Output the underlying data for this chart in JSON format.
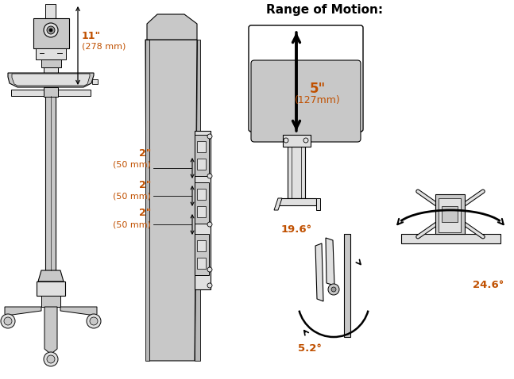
{
  "title": "Range of Motion:",
  "bg_color": "#ffffff",
  "gray_fill": "#c8c8c8",
  "gray_dark": "#999999",
  "gray_light": "#e0e0e0",
  "gray_med": "#b8b8b8",
  "text_color": "#333333",
  "orange_color": "#c05000",
  "dim_11in": "11\"",
  "dim_278mm": "(278 mm)",
  "dim_2in": "2\"",
  "dim_50mm": "(50 mm)",
  "dim_5in": "5\"",
  "dim_127mm": "(127mm)",
  "angle_196": "19.6°",
  "angle_52": "5.2°",
  "angle_246": "24.6°"
}
